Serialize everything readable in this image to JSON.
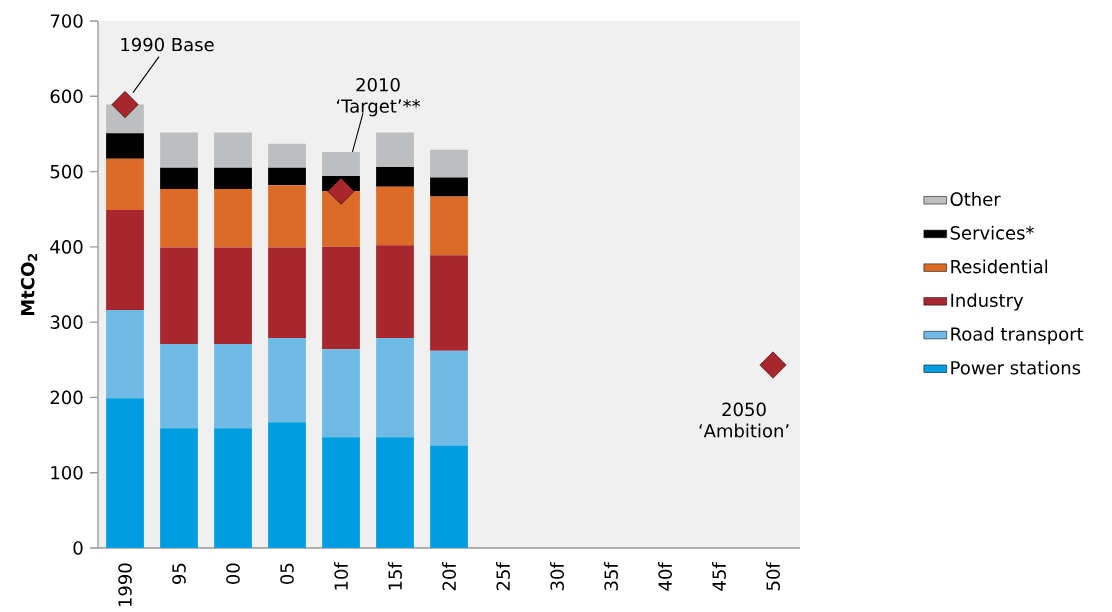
{
  "chart_data": {
    "type": "bar",
    "stacked": true,
    "ylabel": "MtCO$_{2}$",
    "legend": "right",
    "categories": [
      "1990",
      "95",
      "00",
      "05",
      "10f",
      "15f",
      "20f",
      "25f",
      "30f",
      "35f",
      "40f",
      "45f",
      "50f"
    ],
    "ylim": [
      0,
      700
    ],
    "yticks": [
      0,
      100,
      200,
      300,
      400,
      500,
      600,
      700
    ],
    "series": [
      {
        "name": "Power stations",
        "color": "#009ee0",
        "values": [
          199,
          159,
          159,
          167,
          147,
          147,
          136,
          null,
          null,
          null,
          null,
          null,
          null
        ]
      },
      {
        "name": "Road transport",
        "color": "#70bbe6",
        "values": [
          117,
          112,
          112,
          112,
          117,
          132,
          126,
          null,
          null,
          null,
          null,
          null,
          null
        ]
      },
      {
        "name": "Industry",
        "color": "#a8262e",
        "values": [
          133,
          128,
          128,
          120,
          136,
          123,
          127,
          null,
          null,
          null,
          null,
          null,
          null
        ]
      },
      {
        "name": "Residential",
        "color": "#dc6b27",
        "values": [
          68,
          78,
          78,
          83,
          74,
          78,
          78,
          null,
          null,
          null,
          null,
          null,
          null
        ]
      },
      {
        "name": "Services*",
        "color": "#000000",
        "values": [
          34,
          28,
          28,
          23,
          20,
          26,
          25,
          null,
          null,
          null,
          null,
          null,
          null
        ]
      },
      {
        "name": "Other",
        "color": "#bdbec0",
        "values": [
          38,
          47,
          47,
          32,
          32,
          46,
          37,
          null,
          null,
          null,
          null,
          null,
          null
        ]
      },
      {
        "type": "scatter",
        "marker": "diamond",
        "color": "#a8262e",
        "values": [
          589,
          null,
          null,
          null,
          474,
          null,
          null,
          null,
          null,
          null,
          null,
          null,
          243
        ]
      }
    ],
    "annotations": [
      {
        "text": "1990 Base",
        "x": "1990",
        "y": 589
      },
      {
        "text": "2010 ‘Target’**",
        "x": "10f",
        "y": 474
      },
      {
        "text": "2050 ‘Ambition’",
        "x": "50f",
        "y": 243
      }
    ]
  }
}
